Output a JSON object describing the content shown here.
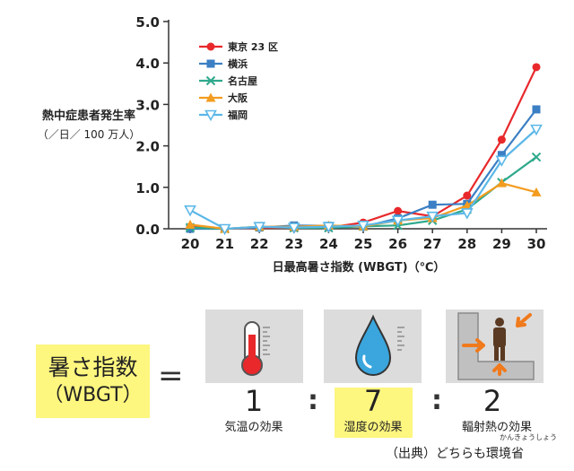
{
  "chart_data": {
    "type": "line",
    "x": [
      20,
      21,
      22,
      23,
      24,
      25,
      26,
      27,
      28,
      29,
      30
    ],
    "xlim": [
      20,
      30
    ],
    "ylim": [
      0,
      5
    ],
    "yticks": [
      "0.0",
      "1.0",
      "2.0",
      "3.0",
      "4.0",
      "5.0"
    ],
    "xticks": [
      "20",
      "21",
      "22",
      "23",
      "24",
      "25",
      "26",
      "27",
      "28",
      "29",
      "30"
    ],
    "grid": false,
    "legend_position": "top-left",
    "ylabel": "熱中症患者発生率",
    "ylabel_unit": "（／日／ 100 万人）",
    "xlabel": "日最高暑さ指数 (WBGT)（℃）",
    "series": [
      {
        "name": "東京 23 区",
        "color": "#e8282b",
        "marker": "circle",
        "values": [
          0.05,
          0.0,
          0.02,
          0.02,
          0.03,
          0.15,
          0.43,
          0.3,
          0.8,
          2.15,
          3.9
        ]
      },
      {
        "name": "横浜",
        "color": "#3b7fc4",
        "marker": "square",
        "values": [
          0.0,
          0.0,
          0.03,
          0.08,
          0.07,
          0.05,
          0.25,
          0.58,
          0.6,
          1.78,
          2.88
        ]
      },
      {
        "name": "名古屋",
        "color": "#2fa98c",
        "marker": "x",
        "values": [
          0.03,
          0.0,
          0.05,
          0.02,
          0.02,
          0.06,
          0.08,
          0.2,
          0.47,
          1.12,
          1.73
        ]
      },
      {
        "name": "大阪",
        "color": "#f39c1f",
        "marker": "triangle",
        "values": [
          0.1,
          0.0,
          0.05,
          0.05,
          0.08,
          0.06,
          0.2,
          0.26,
          0.56,
          1.1,
          0.88
        ]
      },
      {
        "name": "福岡",
        "color": "#5bb7e8",
        "marker": "triangle-down",
        "values": [
          0.45,
          0.0,
          0.05,
          0.03,
          0.05,
          0.08,
          0.2,
          0.3,
          0.38,
          1.65,
          2.4
        ]
      }
    ]
  },
  "formula": {
    "lhs_line1": "暑さ指数",
    "lhs_line2": "（WBGT）",
    "equals": "=",
    "ratio": [
      "1",
      "7",
      "2"
    ],
    "colon": ":",
    "effects": [
      "気温の効果",
      "湿度の効果",
      "輻射熱の効果"
    ],
    "source": "（出典）どちらも環境省",
    "source_ruby": "かんきょうしょう"
  },
  "icons": [
    "thermometer-icon",
    "water-drop-icon",
    "radiant-heat-icon"
  ],
  "colors": {
    "highlight": "#fdf67f",
    "card": "#dcdcdc",
    "thermo_red": "#e8282b",
    "drop_blue": "#3aa6dd",
    "heat_orange": "#f07a1c"
  }
}
